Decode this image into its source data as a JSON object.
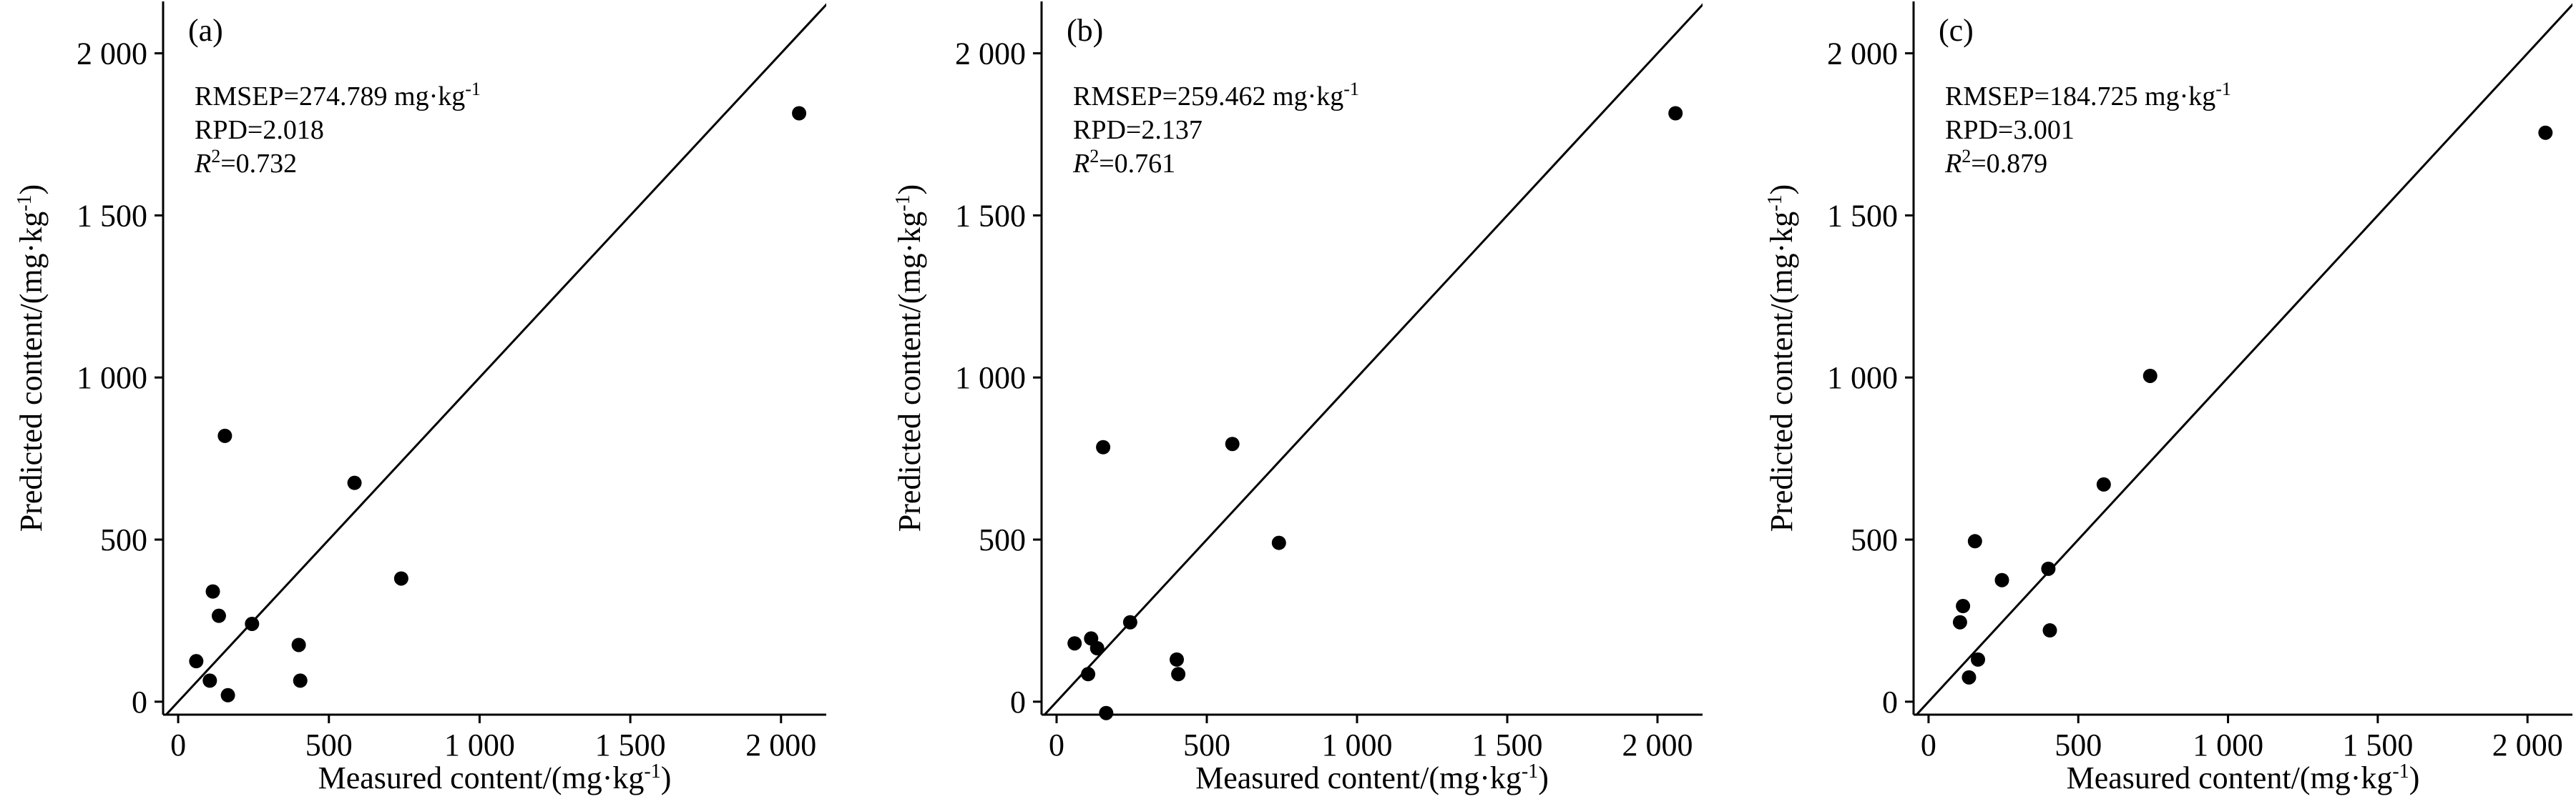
{
  "chart_data": [
    {
      "type": "scatter",
      "panel_label": "(a)",
      "xlabel": "Measured content/(mg·kg",
      "xlabel_sup": "-1",
      "xlabel_tail": ")",
      "ylabel": "Predicted content/(mg·kg",
      "ylabel_sup": "-1",
      "ylabel_tail": ")",
      "xlim": [
        -50,
        2150
      ],
      "ylim": [
        -40,
        2160
      ],
      "xticks": [
        0,
        500,
        1000,
        1500,
        2000
      ],
      "xtick_labels": [
        "0",
        "500",
        "1 000",
        "1 500",
        "2 000"
      ],
      "yticks": [
        0,
        500,
        1000,
        1500,
        2000
      ],
      "ytick_labels": [
        "0",
        "500",
        "1 000",
        "1 500",
        "2 000"
      ],
      "reference_line": "y = x",
      "grid": false,
      "stats": {
        "rmsep_label": "RMSEP=274.789 mg·kg",
        "rmsep_sup": "-1",
        "rpd_label": "RPD=2.018",
        "r2_value": "=0.732"
      },
      "points": [
        {
          "x": 60,
          "y": 125
        },
        {
          "x": 105,
          "y": 65
        },
        {
          "x": 115,
          "y": 340
        },
        {
          "x": 135,
          "y": 265
        },
        {
          "x": 155,
          "y": 820
        },
        {
          "x": 165,
          "y": 20
        },
        {
          "x": 245,
          "y": 240
        },
        {
          "x": 400,
          "y": 175
        },
        {
          "x": 405,
          "y": 65
        },
        {
          "x": 585,
          "y": 675
        },
        {
          "x": 740,
          "y": 380
        },
        {
          "x": 2060,
          "y": 1815
        }
      ]
    },
    {
      "type": "scatter",
      "panel_label": "(b)",
      "xlabel": "Measured content/(mg·kg",
      "xlabel_sup": "-1",
      "xlabel_tail": ")",
      "ylabel": "Predicted content/(mg·kg",
      "ylabel_sup": "-1",
      "ylabel_tail": ")",
      "xlim": [
        -50,
        2150
      ],
      "ylim": [
        -40,
        2160
      ],
      "xticks": [
        0,
        500,
        1000,
        1500,
        2000
      ],
      "xtick_labels": [
        "0",
        "500",
        "1 000",
        "1 500",
        "2 000"
      ],
      "yticks": [
        0,
        500,
        1000,
        1500,
        2000
      ],
      "ytick_labels": [
        "0",
        "500",
        "1 000",
        "1 500",
        "2 000"
      ],
      "reference_line": "y = x",
      "grid": false,
      "stats": {
        "rmsep_label": "RMSEP=259.462 mg·kg",
        "rmsep_sup": "-1",
        "rpd_label": "RPD=2.137",
        "r2_value": "=0.761"
      },
      "points": [
        {
          "x": 60,
          "y": 180
        },
        {
          "x": 105,
          "y": 85
        },
        {
          "x": 115,
          "y": 195
        },
        {
          "x": 135,
          "y": 165
        },
        {
          "x": 155,
          "y": 785
        },
        {
          "x": 165,
          "y": -35
        },
        {
          "x": 245,
          "y": 245
        },
        {
          "x": 400,
          "y": 130
        },
        {
          "x": 405,
          "y": 85
        },
        {
          "x": 585,
          "y": 795
        },
        {
          "x": 740,
          "y": 490
        },
        {
          "x": 2060,
          "y": 1815
        }
      ]
    },
    {
      "type": "scatter",
      "panel_label": "(c)",
      "xlabel": "Measured content/(mg·kg",
      "xlabel_sup": "-1",
      "xlabel_tail": ")",
      "ylabel": "Predicted content/(mg·kg",
      "ylabel_sup": "-1",
      "ylabel_tail": ")",
      "xlim": [
        -50,
        2150
      ],
      "ylim": [
        -40,
        2160
      ],
      "xticks": [
        0,
        500,
        1000,
        1500,
        2000
      ],
      "xtick_labels": [
        "0",
        "500",
        "1 000",
        "1 500",
        "2 000"
      ],
      "yticks": [
        0,
        500,
        1000,
        1500,
        2000
      ],
      "ytick_labels": [
        "0",
        "500",
        "1 000",
        "1 500",
        "2 000"
      ],
      "reference_line": "y = x",
      "grid": false,
      "stats": {
        "rmsep_label": "RMSEP=184.725 mg·kg",
        "rmsep_sup": "-1",
        "rpd_label": "RPD=3.001",
        "r2_value": "=0.879"
      },
      "points": [
        {
          "x": 105,
          "y": 245
        },
        {
          "x": 115,
          "y": 295
        },
        {
          "x": 135,
          "y": 75
        },
        {
          "x": 155,
          "y": 495
        },
        {
          "x": 165,
          "y": 130
        },
        {
          "x": 245,
          "y": 375
        },
        {
          "x": 400,
          "y": 410
        },
        {
          "x": 405,
          "y": 220
        },
        {
          "x": 585,
          "y": 670
        },
        {
          "x": 740,
          "y": 1005
        },
        {
          "x": 2060,
          "y": 1755
        }
      ]
    }
  ]
}
